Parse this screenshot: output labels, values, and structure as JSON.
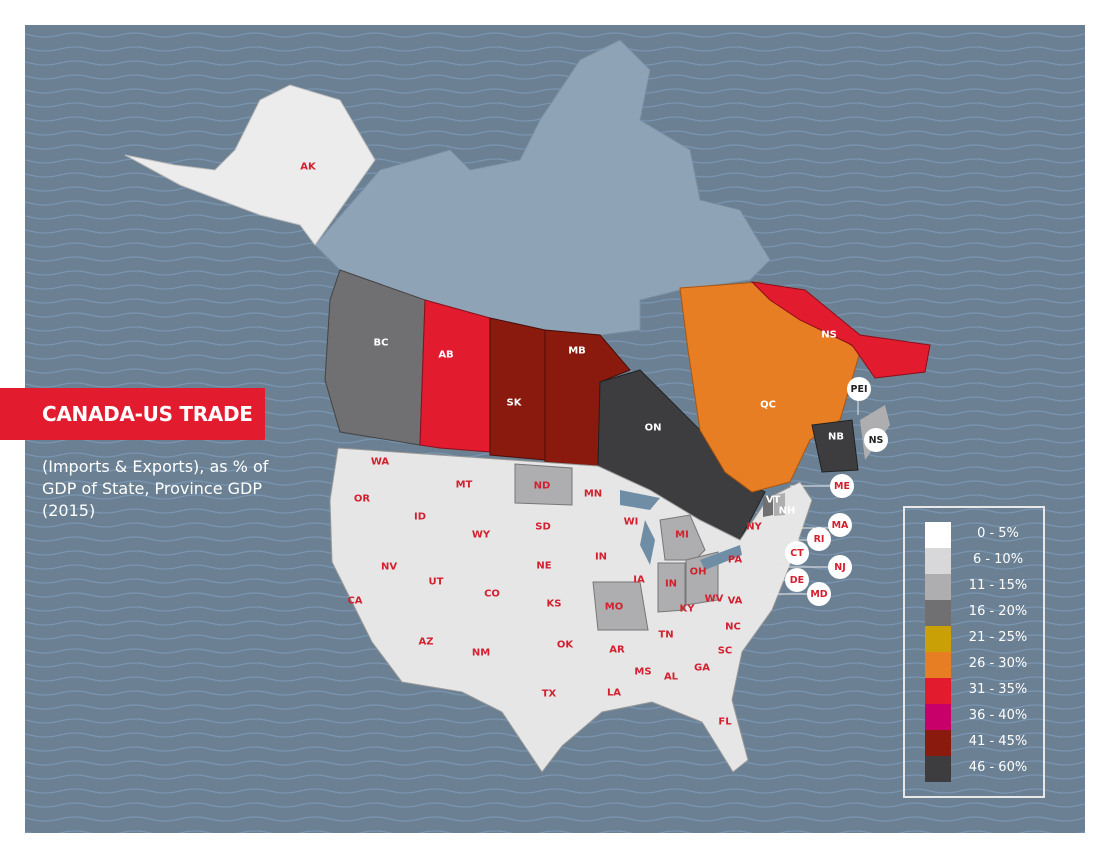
{
  "title": "CANADA-US TRADE",
  "subtitle": "(Imports & Exports), as % of GDP of State, Province GDP (2015)",
  "legend": [
    {
      "label": "0 - 5%",
      "color": "#ffffff"
    },
    {
      "label": "6 - 10%",
      "color": "#d8d8da"
    },
    {
      "label": "11 - 15%",
      "color": "#aeaeb0"
    },
    {
      "label": "16 - 20%",
      "color": "#707072"
    },
    {
      "label": "21 - 25%",
      "color": "#c9a106"
    },
    {
      "label": "26 - 30%",
      "color": "#e87e23"
    },
    {
      "label": "31 - 35%",
      "color": "#e31b2f"
    },
    {
      "label": "36 - 40%",
      "color": "#c8006a"
    },
    {
      "label": "41 - 45%",
      "color": "#8b1a0e"
    },
    {
      "label": "46 - 60%",
      "color": "#3d3d40"
    }
  ],
  "regions": {
    "AK": {
      "label": "AK",
      "range": "6 - 10%"
    },
    "BC": {
      "label": "BC",
      "range": "16 - 20%"
    },
    "AB": {
      "label": "AB",
      "range": "31 - 35%"
    },
    "SK": {
      "label": "SK",
      "range": "41 - 45%"
    },
    "MB": {
      "label": "MB",
      "range": "41 - 45%"
    },
    "ON": {
      "label": "ON",
      "range": "46 - 60%"
    },
    "QC": {
      "label": "QC",
      "range": "26 - 30%"
    },
    "NS_NL": {
      "label": "NS",
      "range": "31 - 35%"
    },
    "NB": {
      "label": "NB",
      "range": "46 - 60%"
    },
    "PEI": {
      "label": "PEI"
    },
    "NS": {
      "label": "NS"
    },
    "ND": {
      "label": "ND",
      "range": "11 - 15%"
    },
    "MO": {
      "label": "MO",
      "range": "11 - 15%"
    },
    "MI": {
      "label": "MI",
      "range": "11 - 15%"
    },
    "VT": {
      "label": "VT",
      "range": "16 - 20%"
    },
    "NH": {
      "label": "NH",
      "range": "11 - 15%"
    },
    "IN_east": {
      "label": "IN",
      "range": "11 - 15%"
    },
    "OH": {
      "label": "OH",
      "range": "11 - 15%"
    }
  },
  "state_labels": [
    "WA",
    "OR",
    "CA",
    "NV",
    "ID",
    "MT",
    "WY",
    "UT",
    "AZ",
    "CO",
    "NM",
    "SD",
    "NE",
    "KS",
    "OK",
    "TX",
    "MN",
    "IA",
    "IN",
    "WI",
    "AR",
    "LA",
    "MS",
    "AL",
    "TN",
    "KY",
    "WV",
    "VA",
    "NC",
    "SC",
    "GA",
    "FL",
    "PA",
    "NY"
  ],
  "bubbles": [
    "ME",
    "MA",
    "RI",
    "CT",
    "NJ",
    "DE",
    "MD"
  ]
}
